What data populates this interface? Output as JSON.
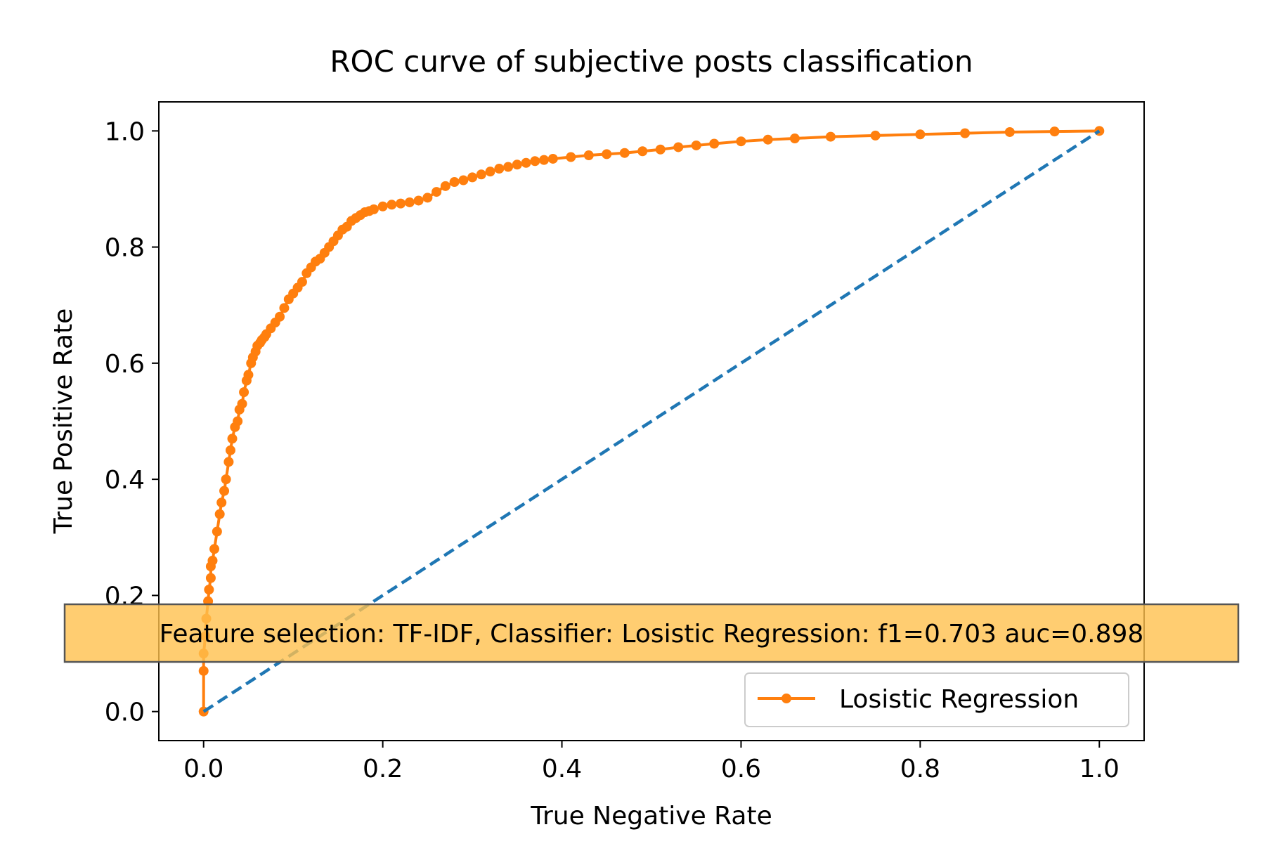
{
  "chart_data": {
    "type": "line",
    "title": "ROC curve of subjective posts classification",
    "xlabel": "True Negative Rate",
    "ylabel": "True Positive Rate",
    "xlim": [
      -0.05,
      1.05
    ],
    "ylim": [
      -0.05,
      1.05
    ],
    "xticks": [
      0.0,
      0.2,
      0.4,
      0.6,
      0.8,
      1.0
    ],
    "yticks": [
      0.0,
      0.2,
      0.4,
      0.6,
      0.8,
      1.0
    ],
    "xtick_labels": [
      "0.0",
      "0.2",
      "0.4",
      "0.6",
      "0.8",
      "1.0"
    ],
    "ytick_labels": [
      "0.0",
      "0.2",
      "0.4",
      "0.6",
      "0.8",
      "1.0"
    ],
    "grid": false,
    "legend_position": "lower-right",
    "series": [
      {
        "name": "Losistic Regression",
        "color": "#ff7f0e",
        "style": "solid",
        "marker": "circle",
        "x": [
          0.0,
          0.0,
          0.0,
          0.002,
          0.003,
          0.005,
          0.006,
          0.008,
          0.008,
          0.01,
          0.012,
          0.015,
          0.018,
          0.02,
          0.023,
          0.025,
          0.028,
          0.03,
          0.032,
          0.035,
          0.038,
          0.04,
          0.043,
          0.045,
          0.048,
          0.05,
          0.053,
          0.055,
          0.058,
          0.06,
          0.063,
          0.065,
          0.068,
          0.07,
          0.075,
          0.08,
          0.085,
          0.09,
          0.095,
          0.1,
          0.105,
          0.11,
          0.115,
          0.12,
          0.125,
          0.13,
          0.135,
          0.14,
          0.145,
          0.15,
          0.155,
          0.16,
          0.165,
          0.17,
          0.175,
          0.18,
          0.185,
          0.19,
          0.2,
          0.21,
          0.22,
          0.23,
          0.24,
          0.25,
          0.26,
          0.27,
          0.28,
          0.29,
          0.3,
          0.31,
          0.32,
          0.33,
          0.34,
          0.35,
          0.36,
          0.37,
          0.38,
          0.39,
          0.41,
          0.43,
          0.45,
          0.47,
          0.49,
          0.51,
          0.53,
          0.55,
          0.57,
          0.6,
          0.63,
          0.66,
          0.7,
          0.75,
          0.8,
          0.85,
          0.9,
          0.95,
          1.0
        ],
        "y": [
          0.0,
          0.07,
          0.1,
          0.13,
          0.16,
          0.19,
          0.21,
          0.23,
          0.25,
          0.26,
          0.28,
          0.31,
          0.34,
          0.36,
          0.38,
          0.4,
          0.43,
          0.45,
          0.47,
          0.49,
          0.5,
          0.52,
          0.53,
          0.55,
          0.57,
          0.58,
          0.6,
          0.61,
          0.62,
          0.63,
          0.635,
          0.64,
          0.645,
          0.65,
          0.66,
          0.67,
          0.68,
          0.695,
          0.71,
          0.72,
          0.73,
          0.74,
          0.755,
          0.765,
          0.775,
          0.78,
          0.79,
          0.8,
          0.81,
          0.82,
          0.83,
          0.835,
          0.845,
          0.85,
          0.855,
          0.86,
          0.862,
          0.865,
          0.87,
          0.873,
          0.875,
          0.877,
          0.88,
          0.885,
          0.895,
          0.905,
          0.912,
          0.915,
          0.92,
          0.925,
          0.93,
          0.935,
          0.938,
          0.942,
          0.945,
          0.948,
          0.95,
          0.952,
          0.955,
          0.958,
          0.96,
          0.962,
          0.965,
          0.968,
          0.972,
          0.975,
          0.978,
          0.982,
          0.985,
          0.987,
          0.99,
          0.992,
          0.994,
          0.996,
          0.998,
          0.999,
          1.0
        ]
      },
      {
        "color": "#1f77b4",
        "style": "dashed",
        "x": [
          0.0,
          1.0
        ],
        "y": [
          0.0,
          1.0
        ]
      }
    ],
    "annotation": {
      "text": "Feature selection: TF-IDF, Classifier: Losistic Regression: f1=0.703 auc=0.898",
      "background": "#ffc04d",
      "border": "#555555"
    }
  }
}
